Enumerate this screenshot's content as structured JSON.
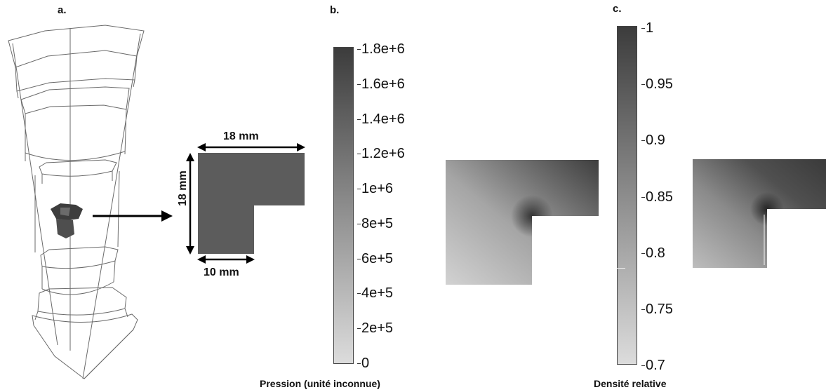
{
  "panels": {
    "a": {
      "label": "a."
    },
    "b": {
      "label": "b."
    },
    "c": {
      "label": "c."
    }
  },
  "dimensions": {
    "top_width": "18 mm",
    "left_height": "18 mm",
    "bottom_width": "10 mm"
  },
  "pressure_colorbar": {
    "ticks": [
      "1.8e+6",
      "1.6e+6",
      "1.4e+6",
      "1.2e+6",
      "1e+6",
      "8e+5",
      "6e+5",
      "4e+5",
      "2e+5",
      "0"
    ],
    "caption": "Pression (unité inconnue)",
    "range": [
      0,
      1800000
    ],
    "colors": {
      "low": "#dcdcdc",
      "high": "#3c3c3c"
    }
  },
  "density_colorbar": {
    "ticks": [
      "1",
      "0.95",
      "0.9",
      "0.85",
      "0.8",
      "0.75",
      "0.7"
    ],
    "caption": "Densité relative",
    "range": [
      0.7,
      1.0
    ],
    "colors": {
      "low": "#dcdcdc",
      "high": "#3c3c3c"
    }
  }
}
